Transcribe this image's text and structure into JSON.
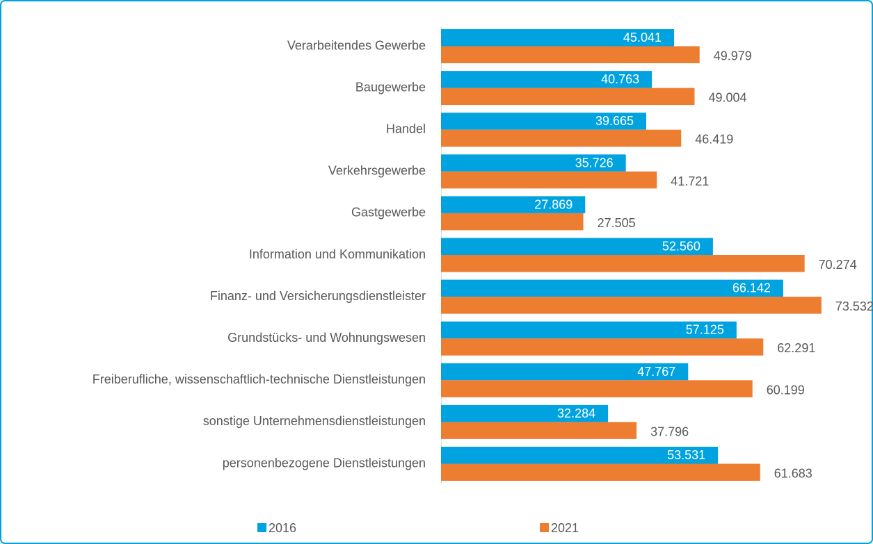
{
  "chart_data": {
    "type": "bar",
    "orientation": "horizontal",
    "categories": [
      "Verarbeitendes Gewerbe",
      "Baugewerbe",
      "Handel",
      "Verkehrsgewerbe",
      "Gastgewerbe",
      "Information und Kommunikation",
      "Finanz- und Versicherungsdienstleister",
      "Grundstücks- und Wohnungswesen",
      "Freiberufliche, wissenschaftlich-technische Dienstleistungen",
      "sonstige Unternehmensdienstleistungen",
      "personenbezogene Dienstleistungen"
    ],
    "series": [
      {
        "name": "2016",
        "color": "#00a3e0",
        "values": [
          45041,
          40763,
          39665,
          35726,
          27869,
          52560,
          66142,
          57125,
          47767,
          32284,
          53531
        ],
        "value_labels": [
          "45.041",
          "40.763",
          "39.665",
          "35.726",
          "27.869",
          "52.560",
          "66.142",
          "57.125",
          "47.767",
          "32.284",
          "53.531"
        ]
      },
      {
        "name": "2021",
        "color": "#ed7d31",
        "values": [
          49979,
          49004,
          46419,
          41721,
          27505,
          70274,
          73532,
          62291,
          60199,
          37796,
          61683
        ],
        "value_labels": [
          "49.979",
          "49.004",
          "46.419",
          "41.721",
          "27.505",
          "70.274",
          "73.532",
          "62.291",
          "60.199",
          "37.796",
          "61.683"
        ]
      }
    ],
    "xlim": [
      0,
      80000
    ],
    "legend": "bottom"
  }
}
